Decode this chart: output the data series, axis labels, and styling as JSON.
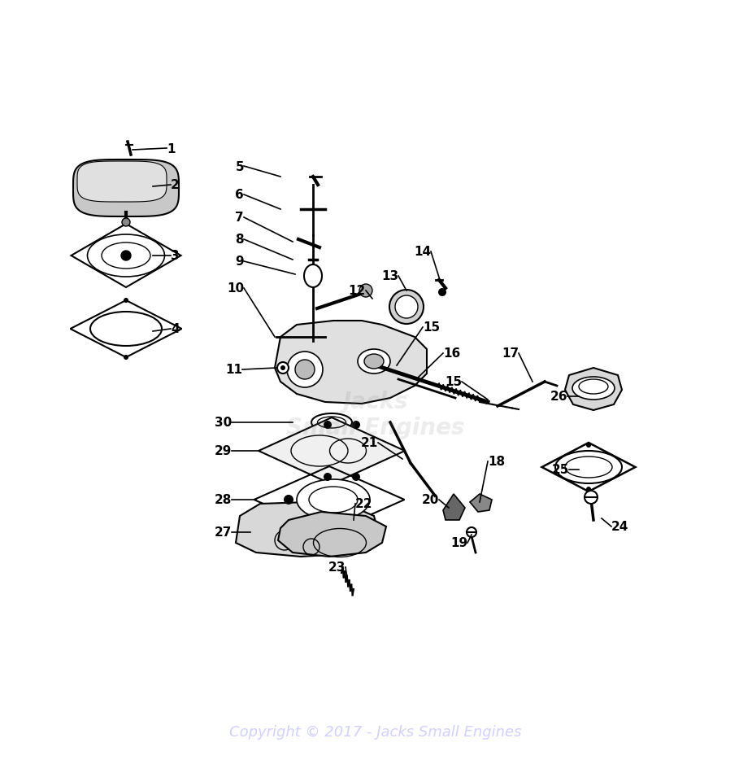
{
  "background_color": "#ffffff",
  "copyright_text": "Copyright © 2017 - Jacks Small Engines",
  "copyright_color": "#d0d0ff",
  "watermark_lines": [
    "Jacks",
    "Small Engines"
  ],
  "fig_width": 9.25,
  "fig_height": 9.62,
  "dpi": 100
}
